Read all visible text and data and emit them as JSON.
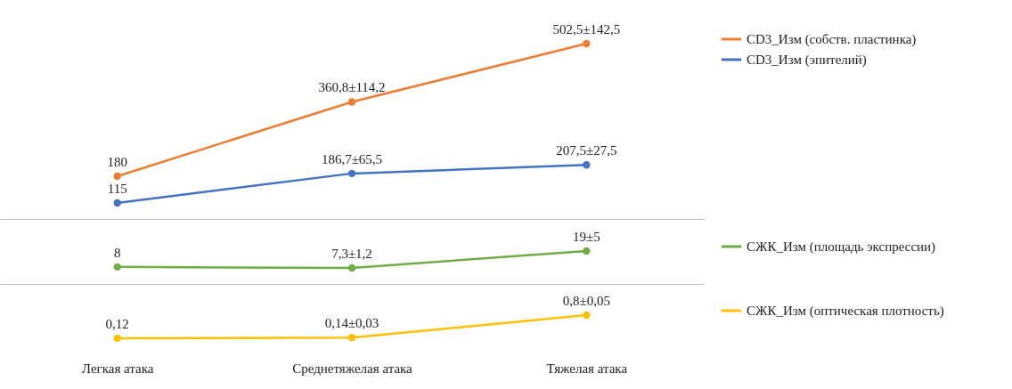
{
  "chart_data": [
    {
      "type": "line",
      "categories": [
        null,
        null,
        null
      ],
      "tick_labels": false,
      "legend": "right",
      "marker": "circle",
      "series": [
        {
          "name": "CD3_Изм (собств. пластинка)",
          "color": "#ed7d31",
          "values": [
            180,
            360.8,
            502.5
          ],
          "value_labels": [
            "180",
            "360,8±114,2",
            "502,5±142,5"
          ]
        },
        {
          "name": "CD3_Изм (эпителий)",
          "color": "#4472c4",
          "values": [
            115,
            186.7,
            207.5
          ],
          "value_labels": [
            "115",
            "186,7±65,5",
            "207,5±27,5"
          ]
        }
      ]
    },
    {
      "type": "line",
      "categories": [
        null,
        null,
        null
      ],
      "tick_labels": false,
      "legend": "right",
      "marker": "circle",
      "series": [
        {
          "name": "СЖК_Изм (площадь экспрессии)",
          "color": "#70ad47",
          "values": [
            8,
            7.3,
            19
          ],
          "value_labels": [
            "8",
            "7,3±1,2",
            "19±5"
          ]
        }
      ]
    },
    {
      "type": "line",
      "categories": [
        "Легкая атака",
        "Среднетяжелая атака",
        "Тяжелая атака"
      ],
      "tick_labels": "x",
      "legend": "right",
      "marker": "circle",
      "series": [
        {
          "name": "СЖК_Изм (оптическая плотность)",
          "color": "#ffc000",
          "values": [
            0.12,
            0.14,
            0.8
          ],
          "value_labels": [
            "0,12",
            "0,14±0,03",
            "0,8±0,05"
          ]
        }
      ]
    }
  ]
}
